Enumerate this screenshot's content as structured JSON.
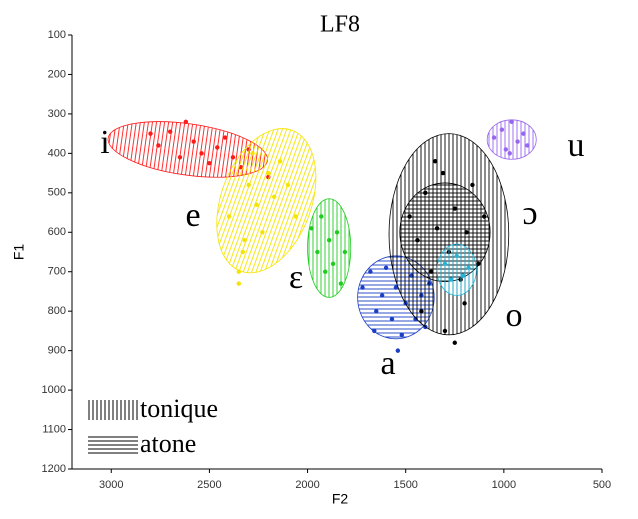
{
  "chart_data": {
    "type": "scatter",
    "title": "LF8",
    "x_label": "F2",
    "y_label": "F1",
    "xlim": [
      3200,
      500
    ],
    "ylim": [
      100,
      1200
    ],
    "xticks": [
      3000,
      2500,
      2000,
      1500,
      1000,
      500
    ],
    "yticks": [
      100,
      200,
      300,
      400,
      500,
      600,
      700,
      800,
      900,
      1000,
      1100,
      1200
    ],
    "legend": [
      {
        "label": "tonique",
        "hatch": "vertical"
      },
      {
        "label": "atone",
        "hatch": "horizontal"
      }
    ],
    "series": [
      {
        "name": "i",
        "color": "#ff1a1a",
        "x": [
          2800,
          2760,
          2700,
          2650,
          2620,
          2580,
          2540,
          2500,
          2460,
          2420,
          2380,
          2340,
          2300,
          2200
        ],
        "y": [
          350,
          380,
          345,
          410,
          320,
          370,
          400,
          425,
          385,
          360,
          410,
          435,
          390,
          460
        ],
        "ellipses": [
          {
            "cx": 2610,
            "cy": 390,
            "rx": 410,
            "ry": 65,
            "angle": 8,
            "hatch": "vertical"
          }
        ]
      },
      {
        "name": "e",
        "color": "#f5e300",
        "x": [
          2400,
          2350,
          2320,
          2300,
          2260,
          2230,
          2200,
          2170,
          2140,
          2100,
          2060,
          2350,
          2330,
          2280
        ],
        "y": [
          560,
          700,
          620,
          480,
          530,
          600,
          450,
          510,
          420,
          480,
          560,
          730,
          650,
          400
        ],
        "ellipses": [
          {
            "cx": 2210,
            "cy": 520,
            "rx": 230,
            "ry": 190,
            "angle": 20,
            "hatch": "vertical"
          }
        ]
      },
      {
        "name": "ɛ",
        "color": "#1fcc1f",
        "x": [
          1980,
          1950,
          1930,
          1910,
          1890,
          1870,
          1850,
          1830,
          1810
        ],
        "y": [
          590,
          650,
          560,
          700,
          620,
          680,
          600,
          730,
          650
        ],
        "ellipses": [
          {
            "cx": 1890,
            "cy": 640,
            "rx": 110,
            "ry": 125,
            "angle": 0,
            "hatch": "vertical"
          }
        ]
      },
      {
        "name": "a",
        "color": "#1b3fc4",
        "x": [
          1720,
          1680,
          1650,
          1620,
          1600,
          1570,
          1550,
          1520,
          1500,
          1470,
          1450,
          1420,
          1400,
          1380,
          1660,
          1540
        ],
        "y": [
          740,
          700,
          800,
          760,
          690,
          820,
          740,
          860,
          780,
          710,
          820,
          760,
          840,
          730,
          850,
          900
        ],
        "ellipses": [
          {
            "cx": 1550,
            "cy": 765,
            "rx": 195,
            "ry": 105,
            "angle": 0,
            "hatch": "horizontal"
          }
        ]
      },
      {
        "name": "o",
        "color": "#000000",
        "x": [
          1480,
          1440,
          1400,
          1370,
          1340,
          1310,
          1280,
          1250,
          1220,
          1190,
          1160,
          1130,
          1100,
          1420,
          1300,
          1200,
          1350,
          1250
        ],
        "y": [
          560,
          620,
          500,
          700,
          590,
          450,
          650,
          540,
          720,
          600,
          480,
          680,
          560,
          800,
          850,
          780,
          420,
          880
        ],
        "ellipses": [
          {
            "cx": 1280,
            "cy": 605,
            "rx": 305,
            "ry": 255,
            "angle": 0,
            "hatch": "vertical"
          },
          {
            "cx": 1300,
            "cy": 600,
            "rx": 230,
            "ry": 125,
            "angle": 0,
            "hatch": "horizontal"
          }
        ]
      },
      {
        "name": "ɔ",
        "color": "#22b5d9",
        "x": [
          1300,
          1270,
          1240,
          1210,
          1180
        ],
        "y": [
          680,
          720,
          660,
          710,
          690
        ],
        "ellipses": [
          {
            "cx": 1240,
            "cy": 695,
            "rx": 100,
            "ry": 65,
            "angle": 0,
            "hatch": "vertical"
          }
        ]
      },
      {
        "name": "u",
        "color": "#9966ee",
        "x": [
          1050,
          1010,
          990,
          960,
          930,
          900,
          880,
          970
        ],
        "y": [
          360,
          340,
          390,
          320,
          370,
          350,
          380,
          400
        ],
        "ellipses": [
          {
            "cx": 960,
            "cy": 365,
            "rx": 125,
            "ry": 50,
            "angle": 0,
            "hatch": "vertical"
          }
        ]
      }
    ]
  }
}
